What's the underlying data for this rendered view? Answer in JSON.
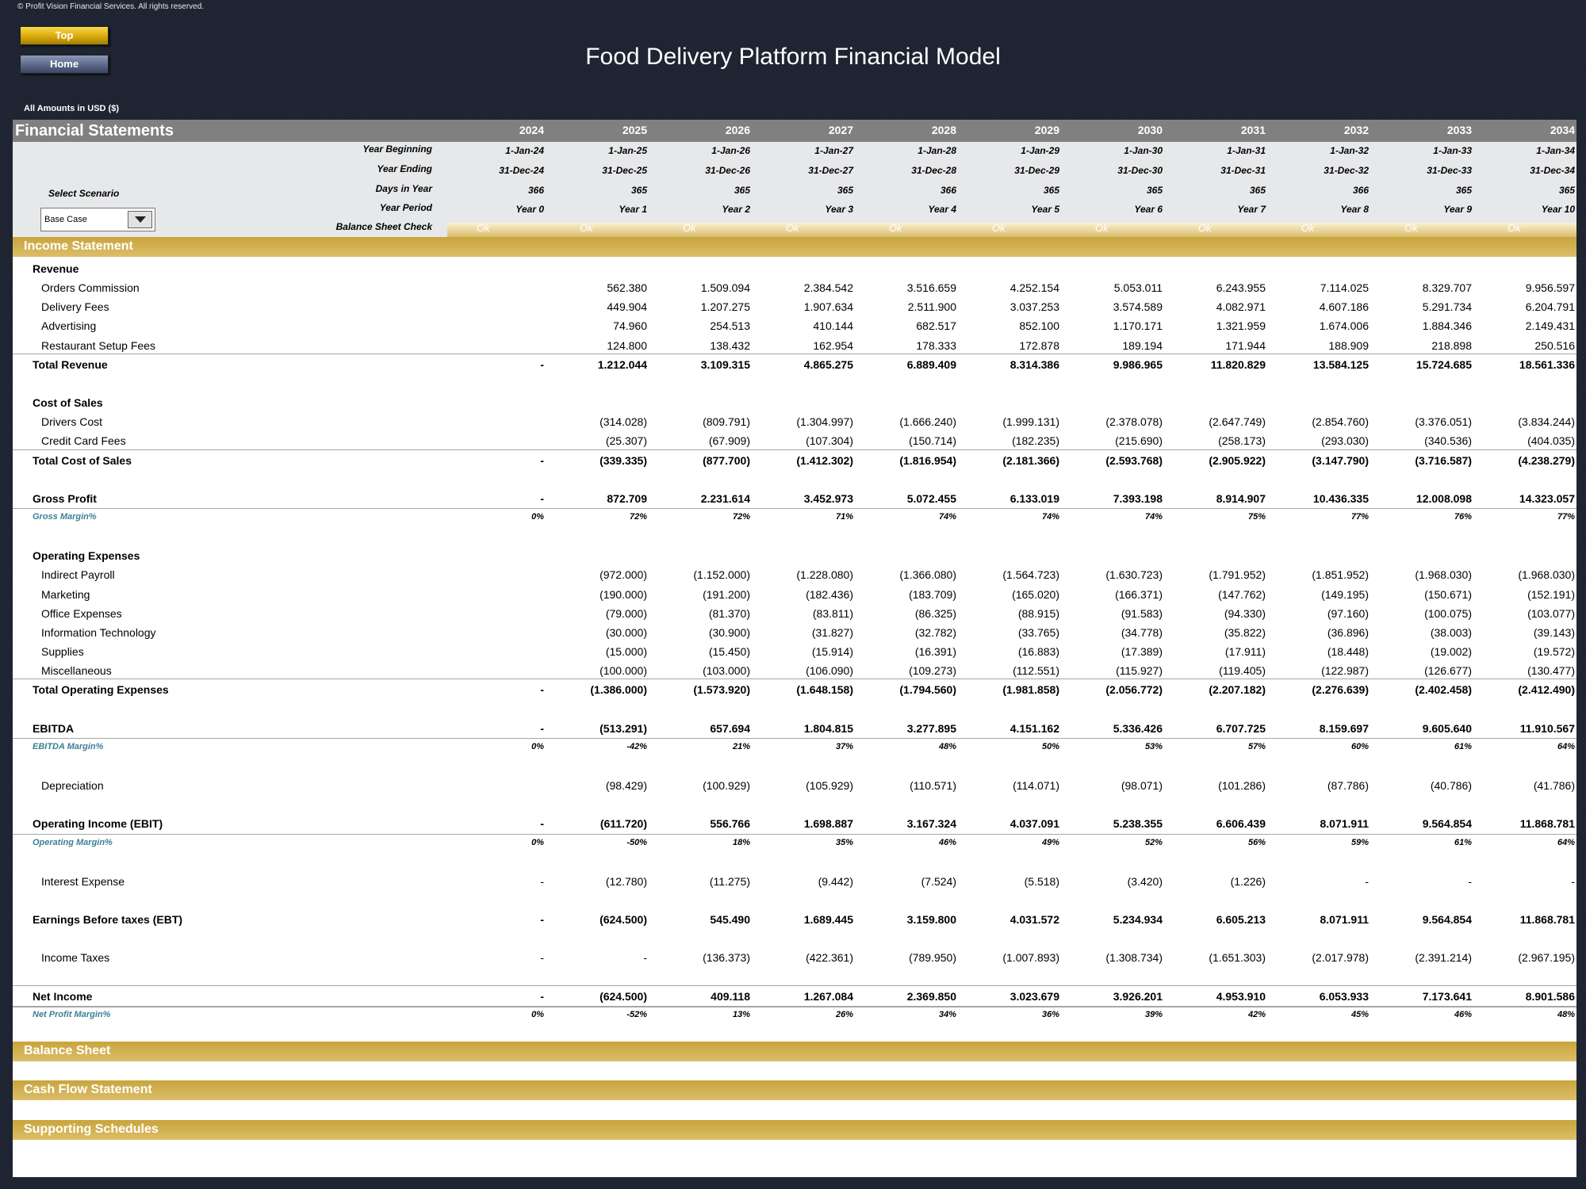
{
  "copyright": "© Profit Vision Financial Services. All rights reserved.",
  "buttons": {
    "top": "Top",
    "home": "Home"
  },
  "title": "Food Delivery Platform Financial Model",
  "amounts_note": "All Amounts in  USD ($)",
  "fs_title": "Financial Statements",
  "years": [
    "2024",
    "2025",
    "2026",
    "2027",
    "2028",
    "2029",
    "2030",
    "2031",
    "2032",
    "2033",
    "2034"
  ],
  "meta_labels": {
    "year_beginning": "Year Beginning",
    "year_ending": "Year Ending",
    "days_in_year": "Days in Year",
    "year_period": "Year Period",
    "balance_check": "Balance Sheet Check"
  },
  "year_beginning": [
    "1-Jan-24",
    "1-Jan-25",
    "1-Jan-26",
    "1-Jan-27",
    "1-Jan-28",
    "1-Jan-29",
    "1-Jan-30",
    "1-Jan-31",
    "1-Jan-32",
    "1-Jan-33",
    "1-Jan-34"
  ],
  "year_ending": [
    "31-Dec-24",
    "31-Dec-25",
    "31-Dec-26",
    "31-Dec-27",
    "31-Dec-28",
    "31-Dec-29",
    "31-Dec-30",
    "31-Dec-31",
    "31-Dec-32",
    "31-Dec-33",
    "31-Dec-34"
  ],
  "days_in_year": [
    "366",
    "365",
    "365",
    "365",
    "366",
    "365",
    "365",
    "365",
    "366",
    "365",
    "365"
  ],
  "year_period": [
    "Year 0",
    "Year 1",
    "Year 2",
    "Year 3",
    "Year 4",
    "Year 5",
    "Year 6",
    "Year 7",
    "Year 8",
    "Year 9",
    "Year 10"
  ],
  "balance_check": [
    "Ok",
    "Ok",
    "Ok",
    "Ok",
    "Ok",
    "Ok",
    "Ok",
    "Ok",
    "Ok",
    "Ok",
    "Ok"
  ],
  "scenario": {
    "label": "Select Scenario",
    "value": "Base Case"
  },
  "sections": {
    "income": "Income Statement",
    "balance": "Balance Sheet",
    "cashflow": "Cash Flow Statement",
    "supporting": "Supporting Schedules"
  },
  "rows": [
    {
      "label": "Revenue",
      "type": "header"
    },
    {
      "label": "Orders Commission",
      "type": "item",
      "values": [
        "",
        "562.380",
        "1.509.094",
        "2.384.542",
        "3.516.659",
        "4.252.154",
        "5.053.011",
        "6.243.955",
        "7.114.025",
        "8.329.707",
        "9.956.597"
      ]
    },
    {
      "label": "Delivery Fees",
      "type": "item",
      "values": [
        "",
        "449.904",
        "1.207.275",
        "1.907.634",
        "2.511.900",
        "3.037.253",
        "3.574.589",
        "4.082.971",
        "4.607.186",
        "5.291.734",
        "6.204.791"
      ]
    },
    {
      "label": "Advertising",
      "type": "item",
      "values": [
        "",
        "74.960",
        "254.513",
        "410.144",
        "682.517",
        "852.100",
        "1.170.171",
        "1.321.959",
        "1.674.006",
        "1.884.346",
        "2.149.431"
      ]
    },
    {
      "label": "Restaurant Setup Fees",
      "type": "item",
      "values": [
        "",
        "124.800",
        "138.432",
        "162.954",
        "178.333",
        "172.878",
        "189.194",
        "171.944",
        "188.909",
        "218.898",
        "250.516"
      ]
    },
    {
      "label": "Total Revenue",
      "type": "total",
      "values": [
        "-",
        "1.212.044",
        "3.109.315",
        "4.865.275",
        "6.889.409",
        "8.314.386",
        "9.986.965",
        "11.820.829",
        "13.584.125",
        "15.724.685",
        "18.561.336"
      ]
    },
    {
      "type": "blank"
    },
    {
      "label": "Cost of Sales",
      "type": "header"
    },
    {
      "label": "Drivers Cost",
      "type": "item",
      "values": [
        "",
        "(314.028)",
        "(809.791)",
        "(1.304.997)",
        "(1.666.240)",
        "(1.999.131)",
        "(2.378.078)",
        "(2.647.749)",
        "(2.854.760)",
        "(3.376.051)",
        "(3.834.244)"
      ]
    },
    {
      "label": "Credit Card Fees",
      "type": "item",
      "values": [
        "",
        "(25.307)",
        "(67.909)",
        "(107.304)",
        "(150.714)",
        "(182.235)",
        "(215.690)",
        "(258.173)",
        "(293.030)",
        "(340.536)",
        "(404.035)"
      ]
    },
    {
      "label": "Total Cost of Sales",
      "type": "total",
      "values": [
        "-",
        "(339.335)",
        "(877.700)",
        "(1.412.302)",
        "(1.816.954)",
        "(2.181.366)",
        "(2.593.768)",
        "(2.905.922)",
        "(3.147.790)",
        "(3.716.587)",
        "(4.238.279)"
      ]
    },
    {
      "type": "blank"
    },
    {
      "label": "Gross Profit",
      "type": "sub",
      "values": [
        "-",
        "872.709",
        "2.231.614",
        "3.452.973",
        "5.072.455",
        "6.133.019",
        "7.393.198",
        "8.914.907",
        "10.436.335",
        "12.008.098",
        "14.323.057"
      ]
    },
    {
      "label": "Gross Margin%",
      "type": "pct",
      "values": [
        "0%",
        "72%",
        "72%",
        "71%",
        "74%",
        "74%",
        "74%",
        "75%",
        "77%",
        "76%",
        "77%"
      ]
    },
    {
      "type": "blank"
    },
    {
      "label": "Operating Expenses",
      "type": "header"
    },
    {
      "label": "Indirect Payroll",
      "type": "item",
      "values": [
        "",
        "(972.000)",
        "(1.152.000)",
        "(1.228.080)",
        "(1.366.080)",
        "(1.564.723)",
        "(1.630.723)",
        "(1.791.952)",
        "(1.851.952)",
        "(1.968.030)",
        "(1.968.030)"
      ]
    },
    {
      "label": "Marketing",
      "type": "item",
      "values": [
        "",
        "(190.000)",
        "(191.200)",
        "(182.436)",
        "(183.709)",
        "(165.020)",
        "(166.371)",
        "(147.762)",
        "(149.195)",
        "(150.671)",
        "(152.191)"
      ]
    },
    {
      "label": "Office Expenses",
      "type": "item",
      "values": [
        "",
        "(79.000)",
        "(81.370)",
        "(83.811)",
        "(86.325)",
        "(88.915)",
        "(91.583)",
        "(94.330)",
        "(97.160)",
        "(100.075)",
        "(103.077)"
      ]
    },
    {
      "label": "Information Technology",
      "type": "item",
      "values": [
        "",
        "(30.000)",
        "(30.900)",
        "(31.827)",
        "(32.782)",
        "(33.765)",
        "(34.778)",
        "(35.822)",
        "(36.896)",
        "(38.003)",
        "(39.143)"
      ]
    },
    {
      "label": "Supplies",
      "type": "item",
      "values": [
        "",
        "(15.000)",
        "(15.450)",
        "(15.914)",
        "(16.391)",
        "(16.883)",
        "(17.389)",
        "(17.911)",
        "(18.448)",
        "(19.002)",
        "(19.572)"
      ]
    },
    {
      "label": "Miscellaneous",
      "type": "item",
      "values": [
        "",
        "(100.000)",
        "(103.000)",
        "(106.090)",
        "(109.273)",
        "(112.551)",
        "(115.927)",
        "(119.405)",
        "(122.987)",
        "(126.677)",
        "(130.477)"
      ]
    },
    {
      "label": "Total Operating Expenses",
      "type": "total",
      "values": [
        "-",
        "(1.386.000)",
        "(1.573.920)",
        "(1.648.158)",
        "(1.794.560)",
        "(1.981.858)",
        "(2.056.772)",
        "(2.207.182)",
        "(2.276.639)",
        "(2.402.458)",
        "(2.412.490)"
      ]
    },
    {
      "type": "blank"
    },
    {
      "label": "EBITDA",
      "type": "sub",
      "values": [
        "-",
        "(513.291)",
        "657.694",
        "1.804.815",
        "3.277.895",
        "4.151.162",
        "5.336.426",
        "6.707.725",
        "8.159.697",
        "9.605.640",
        "11.910.567"
      ]
    },
    {
      "label": "EBITDA Margin%",
      "type": "pct",
      "values": [
        "0%",
        "-42%",
        "21%",
        "37%",
        "48%",
        "50%",
        "53%",
        "57%",
        "60%",
        "61%",
        "64%"
      ]
    },
    {
      "type": "blank"
    },
    {
      "label": "Depreciation",
      "type": "item",
      "values": [
        "",
        "(98.429)",
        "(100.929)",
        "(105.929)",
        "(110.571)",
        "(114.071)",
        "(98.071)",
        "(101.286)",
        "(87.786)",
        "(40.786)",
        "(41.786)"
      ]
    },
    {
      "type": "blank"
    },
    {
      "label": "Operating Income (EBIT)",
      "type": "sub",
      "values": [
        "-",
        "(611.720)",
        "556.766",
        "1.698.887",
        "3.167.324",
        "4.037.091",
        "5.238.355",
        "6.606.439",
        "8.071.911",
        "9.564.854",
        "11.868.781"
      ]
    },
    {
      "label": "Operating Margin%",
      "type": "pct",
      "values": [
        "0%",
        "-50%",
        "18%",
        "35%",
        "46%",
        "49%",
        "52%",
        "56%",
        "59%",
        "61%",
        "64%"
      ]
    },
    {
      "type": "blank"
    },
    {
      "label": "Interest Expense",
      "type": "item",
      "values": [
        "-",
        "(12.780)",
        "(11.275)",
        "(9.442)",
        "(7.524)",
        "(5.518)",
        "(3.420)",
        "(1.226)",
        "-",
        "-",
        "-"
      ]
    },
    {
      "type": "blank"
    },
    {
      "label": "Earnings Before taxes (EBT)",
      "type": "subnl",
      "values": [
        "-",
        "(624.500)",
        "545.490",
        "1.689.445",
        "3.159.800",
        "4.031.572",
        "5.234.934",
        "6.605.213",
        "8.071.911",
        "9.564.854",
        "11.868.781"
      ]
    },
    {
      "type": "blank"
    },
    {
      "label": "Income Taxes",
      "type": "item",
      "values": [
        "-",
        "-",
        "(136.373)",
        "(422.361)",
        "(789.950)",
        "(1.007.893)",
        "(1.308.734)",
        "(1.651.303)",
        "(2.017.978)",
        "(2.391.214)",
        "(2.967.195)"
      ]
    },
    {
      "type": "blank"
    },
    {
      "label": "Net Income",
      "type": "net",
      "values": [
        "-",
        "(624.500)",
        "409.118",
        "1.267.084",
        "2.369.850",
        "3.023.679",
        "3.926.201",
        "4.953.910",
        "6.053.933",
        "7.173.641",
        "8.901.586"
      ]
    },
    {
      "label": "Net Profit Margin%",
      "type": "pct",
      "values": [
        "0%",
        "-52%",
        "13%",
        "26%",
        "34%",
        "36%",
        "39%",
        "42%",
        "45%",
        "46%",
        "48%"
      ]
    }
  ]
}
